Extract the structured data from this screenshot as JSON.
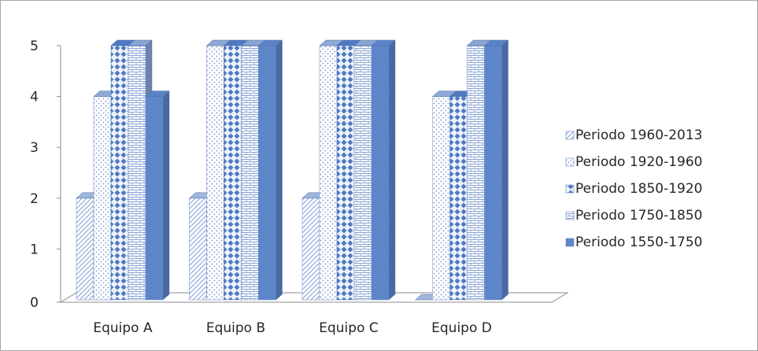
{
  "chart_data": {
    "type": "bar",
    "title": "",
    "xlabel": "",
    "ylabel": "",
    "categories": [
      "Equipo A",
      "Equipo B",
      "Equipo C",
      "Equipo D"
    ],
    "ylim": [
      0,
      5
    ],
    "yticks": [
      "0",
      "1",
      "2",
      "3",
      "4",
      "5"
    ],
    "legend_position": "right",
    "grid": false,
    "series": [
      {
        "name": "Periodo 1960-2013",
        "values": [
          2,
          2,
          2,
          0
        ],
        "color": "#9fb6dc",
        "pattern": "diag"
      },
      {
        "name": "Periodo 1920-1960",
        "values": [
          4,
          5,
          5,
          4
        ],
        "color": "#8fa9d6",
        "pattern": "dots"
      },
      {
        "name": "Periodo 1850-1920",
        "values": [
          5,
          5,
          5,
          4
        ],
        "color": "#4f79c0",
        "pattern": "diamonds"
      },
      {
        "name": "Periodo 1750-1850",
        "values": [
          5,
          5,
          5,
          5
        ],
        "color": "#8aa4d3",
        "pattern": "brick"
      },
      {
        "name": "Periodo 1550-1750",
        "values": [
          4,
          5,
          5,
          5
        ],
        "color": "#5b84c8",
        "pattern": "solid"
      }
    ],
    "legend_order": [
      "Periodo 1960-2013",
      "Periodo 1920-1960",
      "Periodo 1850-1920",
      "Periodo 1750-1850",
      "Periodo 1550-1750"
    ]
  }
}
